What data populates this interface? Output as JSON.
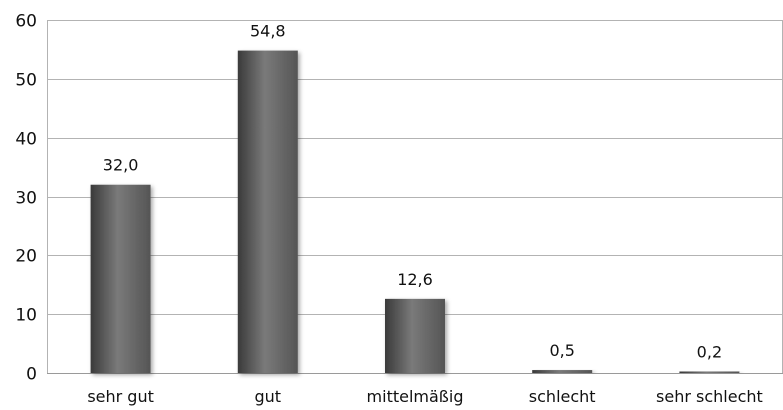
{
  "chart_data": {
    "type": "bar",
    "categories": [
      "sehr gut",
      "gut",
      "mittelmäßig",
      "schlecht",
      "sehr schlecht"
    ],
    "values": [
      32.0,
      54.8,
      12.6,
      0.5,
      0.2
    ],
    "data_labels": [
      "32,0",
      "54,8",
      "12,6",
      "0,5",
      "0,2"
    ],
    "title": "",
    "xlabel": "",
    "ylabel": "",
    "ylim": [
      0,
      60
    ],
    "yticks": [
      0,
      10,
      20,
      30,
      40,
      50,
      60
    ],
    "grid": true,
    "legend": "none",
    "colors": {
      "bar": "#555555",
      "bar_highlight": "#7a7a7a",
      "bar_shadow": "#3a3a3a",
      "grid": "#b3b3b3",
      "axis": "#9a9a9a"
    }
  }
}
